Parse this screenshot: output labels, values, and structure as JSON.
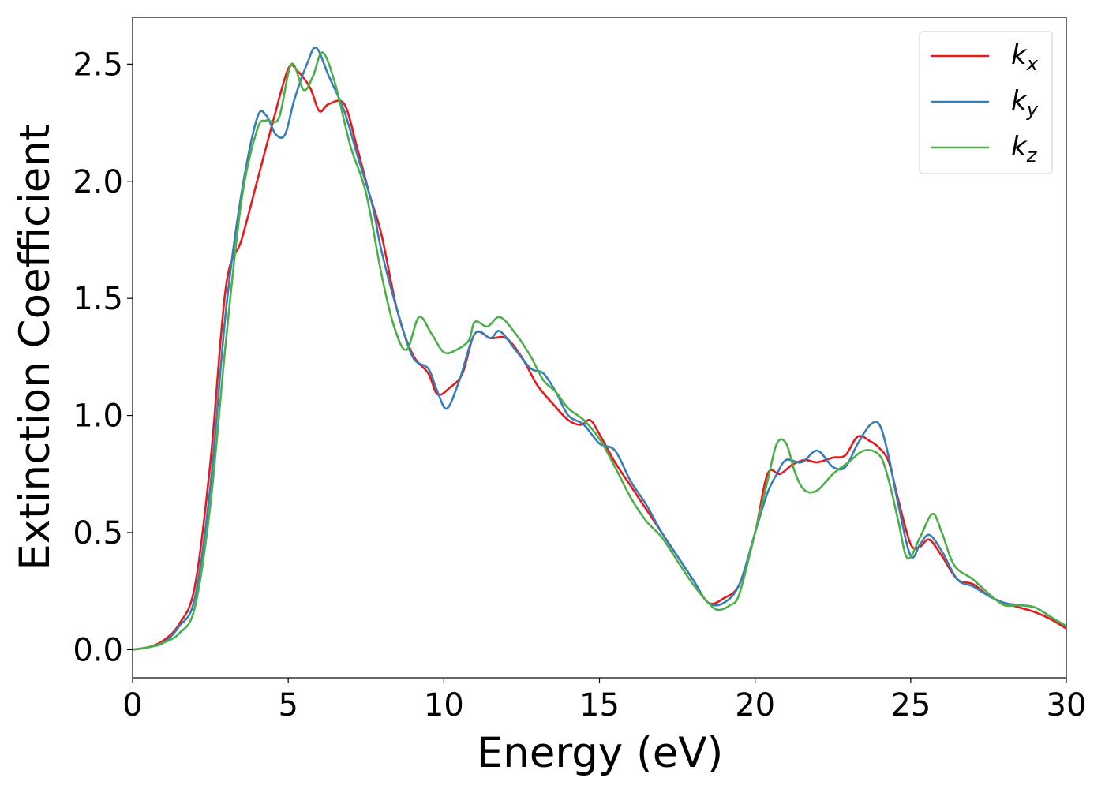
{
  "chart_data": {
    "type": "line",
    "title": "",
    "xlabel": "Energy (eV)",
    "ylabel": "Extinction Coefficient",
    "xlim": [
      0,
      30
    ],
    "ylim": [
      -0.12,
      2.7
    ],
    "xticks": [
      0,
      5,
      10,
      15,
      20,
      25,
      30
    ],
    "xtick_labels": [
      "0",
      "5",
      "10",
      "15",
      "20",
      "25",
      "30"
    ],
    "yticks": [
      0.0,
      0.5,
      1.0,
      1.5,
      2.0,
      2.5
    ],
    "ytick_labels": [
      "0.0",
      "0.5",
      "1.0",
      "1.5",
      "2.0",
      "2.5"
    ],
    "grid": false,
    "legend_position": "top-right",
    "series": [
      {
        "name": "k_x",
        "legend_base": "k",
        "legend_sub": "x",
        "color": "#e41a1c",
        "points": [
          [
            0,
            0.0
          ],
          [
            0.5,
            0.01
          ],
          [
            1.0,
            0.04
          ],
          [
            1.5,
            0.11
          ],
          [
            2.0,
            0.27
          ],
          [
            2.5,
            0.8
          ],
          [
            3.0,
            1.55
          ],
          [
            3.5,
            1.75
          ],
          [
            4.0,
            2.0
          ],
          [
            4.5,
            2.25
          ],
          [
            5.0,
            2.48
          ],
          [
            5.3,
            2.47
          ],
          [
            5.7,
            2.4
          ],
          [
            6.0,
            2.3
          ],
          [
            6.3,
            2.33
          ],
          [
            6.8,
            2.33
          ],
          [
            7.2,
            2.15
          ],
          [
            7.6,
            1.95
          ],
          [
            8.0,
            1.77
          ],
          [
            8.5,
            1.45
          ],
          [
            9.0,
            1.26
          ],
          [
            9.5,
            1.18
          ],
          [
            9.8,
            1.09
          ],
          [
            10.2,
            1.12
          ],
          [
            10.6,
            1.18
          ],
          [
            11.0,
            1.35
          ],
          [
            11.5,
            1.33
          ],
          [
            12.0,
            1.33
          ],
          [
            12.5,
            1.25
          ],
          [
            13.0,
            1.13
          ],
          [
            13.5,
            1.05
          ],
          [
            14.0,
            0.98
          ],
          [
            14.4,
            0.96
          ],
          [
            14.7,
            0.98
          ],
          [
            15.0,
            0.92
          ],
          [
            15.5,
            0.8
          ],
          [
            16.0,
            0.7
          ],
          [
            16.5,
            0.6
          ],
          [
            17.0,
            0.5
          ],
          [
            17.5,
            0.4
          ],
          [
            18.0,
            0.3
          ],
          [
            18.5,
            0.2
          ],
          [
            19.0,
            0.22
          ],
          [
            19.5,
            0.28
          ],
          [
            20.0,
            0.5
          ],
          [
            20.4,
            0.75
          ],
          [
            20.8,
            0.75
          ],
          [
            21.2,
            0.79
          ],
          [
            21.6,
            0.81
          ],
          [
            22.0,
            0.8
          ],
          [
            22.5,
            0.82
          ],
          [
            22.9,
            0.83
          ],
          [
            23.3,
            0.91
          ],
          [
            23.7,
            0.89
          ],
          [
            24.0,
            0.86
          ],
          [
            24.3,
            0.8
          ],
          [
            24.6,
            0.64
          ],
          [
            25.0,
            0.45
          ],
          [
            25.3,
            0.44
          ],
          [
            25.6,
            0.47
          ],
          [
            26.0,
            0.4
          ],
          [
            26.5,
            0.3
          ],
          [
            27.0,
            0.28
          ],
          [
            27.5,
            0.23
          ],
          [
            28.0,
            0.2
          ],
          [
            28.5,
            0.18
          ],
          [
            29.0,
            0.16
          ],
          [
            29.5,
            0.13
          ],
          [
            30.0,
            0.09
          ]
        ]
      },
      {
        "name": "k_y",
        "legend_base": "k",
        "legend_sub": "y",
        "color": "#377eb8",
        "points": [
          [
            0,
            0.0
          ],
          [
            0.5,
            0.01
          ],
          [
            1.0,
            0.03
          ],
          [
            1.5,
            0.1
          ],
          [
            2.0,
            0.22
          ],
          [
            2.5,
            0.7
          ],
          [
            3.0,
            1.45
          ],
          [
            3.5,
            1.95
          ],
          [
            4.0,
            2.27
          ],
          [
            4.3,
            2.28
          ],
          [
            4.6,
            2.2
          ],
          [
            4.9,
            2.2
          ],
          [
            5.2,
            2.35
          ],
          [
            5.6,
            2.5
          ],
          [
            5.9,
            2.57
          ],
          [
            6.3,
            2.45
          ],
          [
            6.8,
            2.3
          ],
          [
            7.2,
            2.12
          ],
          [
            7.7,
            1.9
          ],
          [
            8.0,
            1.7
          ],
          [
            8.5,
            1.45
          ],
          [
            9.0,
            1.25
          ],
          [
            9.5,
            1.2
          ],
          [
            9.8,
            1.1
          ],
          [
            10.1,
            1.03
          ],
          [
            10.5,
            1.15
          ],
          [
            11.0,
            1.35
          ],
          [
            11.5,
            1.33
          ],
          [
            11.8,
            1.36
          ],
          [
            12.3,
            1.28
          ],
          [
            12.8,
            1.2
          ],
          [
            13.2,
            1.18
          ],
          [
            13.6,
            1.1
          ],
          [
            14.0,
            1.0
          ],
          [
            14.5,
            0.96
          ],
          [
            15.0,
            0.88
          ],
          [
            15.5,
            0.85
          ],
          [
            16.0,
            0.72
          ],
          [
            16.5,
            0.62
          ],
          [
            17.0,
            0.5
          ],
          [
            17.5,
            0.4
          ],
          [
            18.0,
            0.3
          ],
          [
            18.5,
            0.2
          ],
          [
            19.0,
            0.2
          ],
          [
            19.5,
            0.28
          ],
          [
            20.0,
            0.5
          ],
          [
            20.4,
            0.67
          ],
          [
            20.7,
            0.75
          ],
          [
            21.0,
            0.81
          ],
          [
            21.5,
            0.8
          ],
          [
            22.0,
            0.85
          ],
          [
            22.5,
            0.78
          ],
          [
            22.9,
            0.78
          ],
          [
            23.3,
            0.88
          ],
          [
            23.7,
            0.96
          ],
          [
            24.0,
            0.96
          ],
          [
            24.3,
            0.82
          ],
          [
            24.6,
            0.62
          ],
          [
            25.0,
            0.4
          ],
          [
            25.3,
            0.45
          ],
          [
            25.6,
            0.49
          ],
          [
            26.0,
            0.42
          ],
          [
            26.5,
            0.3
          ],
          [
            27.0,
            0.27
          ],
          [
            27.5,
            0.23
          ],
          [
            28.0,
            0.2
          ],
          [
            28.5,
            0.19
          ],
          [
            29.0,
            0.18
          ],
          [
            29.5,
            0.14
          ],
          [
            30.0,
            0.1
          ]
        ]
      },
      {
        "name": "k_z",
        "legend_base": "k",
        "legend_sub": "z",
        "color": "#4daf4a",
        "points": [
          [
            0,
            0.0
          ],
          [
            0.5,
            0.01
          ],
          [
            1.0,
            0.03
          ],
          [
            1.5,
            0.07
          ],
          [
            2.0,
            0.18
          ],
          [
            2.5,
            0.62
          ],
          [
            3.0,
            1.32
          ],
          [
            3.5,
            1.92
          ],
          [
            4.0,
            2.22
          ],
          [
            4.3,
            2.26
          ],
          [
            4.7,
            2.27
          ],
          [
            5.1,
            2.5
          ],
          [
            5.5,
            2.39
          ],
          [
            5.8,
            2.45
          ],
          [
            6.1,
            2.55
          ],
          [
            6.5,
            2.42
          ],
          [
            7.0,
            2.15
          ],
          [
            7.5,
            1.95
          ],
          [
            8.0,
            1.6
          ],
          [
            8.4,
            1.38
          ],
          [
            8.8,
            1.28
          ],
          [
            9.2,
            1.42
          ],
          [
            9.6,
            1.35
          ],
          [
            10.0,
            1.27
          ],
          [
            10.4,
            1.28
          ],
          [
            10.8,
            1.32
          ],
          [
            11.0,
            1.4
          ],
          [
            11.4,
            1.38
          ],
          [
            11.8,
            1.42
          ],
          [
            12.3,
            1.35
          ],
          [
            12.8,
            1.25
          ],
          [
            13.2,
            1.15
          ],
          [
            13.6,
            1.1
          ],
          [
            14.0,
            1.03
          ],
          [
            14.5,
            0.98
          ],
          [
            15.0,
            0.9
          ],
          [
            15.5,
            0.78
          ],
          [
            16.0,
            0.65
          ],
          [
            16.5,
            0.55
          ],
          [
            17.0,
            0.48
          ],
          [
            17.5,
            0.38
          ],
          [
            18.0,
            0.28
          ],
          [
            18.5,
            0.2
          ],
          [
            18.8,
            0.17
          ],
          [
            19.2,
            0.19
          ],
          [
            19.5,
            0.24
          ],
          [
            20.0,
            0.5
          ],
          [
            20.4,
            0.72
          ],
          [
            20.7,
            0.88
          ],
          [
            21.0,
            0.88
          ],
          [
            21.3,
            0.75
          ],
          [
            21.6,
            0.68
          ],
          [
            22.0,
            0.68
          ],
          [
            22.5,
            0.75
          ],
          [
            23.0,
            0.8
          ],
          [
            23.5,
            0.85
          ],
          [
            24.0,
            0.83
          ],
          [
            24.3,
            0.72
          ],
          [
            24.6,
            0.55
          ],
          [
            24.9,
            0.39
          ],
          [
            25.3,
            0.48
          ],
          [
            25.7,
            0.58
          ],
          [
            26.0,
            0.5
          ],
          [
            26.4,
            0.36
          ],
          [
            27.0,
            0.3
          ],
          [
            27.5,
            0.24
          ],
          [
            28.0,
            0.19
          ],
          [
            28.5,
            0.19
          ],
          [
            29.0,
            0.18
          ],
          [
            29.5,
            0.14
          ],
          [
            30.0,
            0.1
          ]
        ]
      }
    ]
  }
}
